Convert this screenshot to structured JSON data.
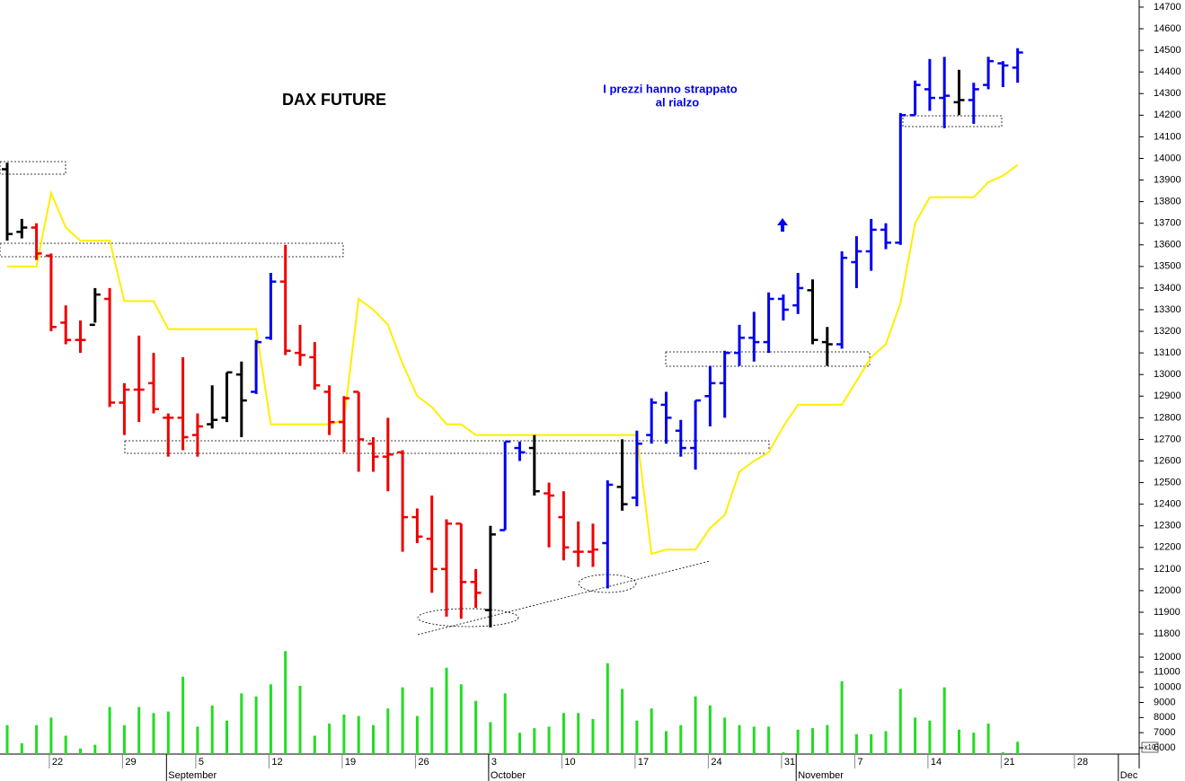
{
  "chart_data": {
    "type": "ohlc",
    "title": "DAX FUTURE",
    "annotation": [
      "I prezzi hanno strappato",
      "al rialzo"
    ],
    "volume_multiplier_label": "x10",
    "categories": [
      null,
      null,
      null,
      "22",
      null,
      null,
      null,
      null,
      "29",
      null,
      null,
      null,
      null,
      "5",
      null,
      null,
      null,
      null,
      "12",
      null,
      null,
      null,
      null,
      "19",
      null,
      null,
      null,
      null,
      "26",
      null,
      null,
      null,
      null,
      "3",
      null,
      null,
      null,
      null,
      "10",
      null,
      null,
      null,
      null,
      "17",
      null,
      null,
      null,
      null,
      "24",
      null,
      null,
      null,
      null,
      "31",
      null,
      null,
      null,
      null,
      "7",
      null,
      null,
      null,
      null,
      "14",
      null,
      null,
      null,
      null,
      "21",
      null,
      null,
      null,
      null,
      "28",
      null,
      null,
      null
    ],
    "month_labels": [
      null,
      null,
      null,
      null,
      null,
      null,
      null,
      null,
      null,
      null,
      null,
      "September",
      null,
      null,
      null,
      null,
      null,
      null,
      null,
      null,
      null,
      null,
      null,
      null,
      null,
      null,
      null,
      null,
      null,
      null,
      null,
      null,
      null,
      "October",
      null,
      null,
      null,
      null,
      null,
      null,
      null,
      null,
      null,
      null,
      null,
      null,
      null,
      null,
      null,
      null,
      null,
      null,
      null,
      null,
      "November",
      null,
      null,
      null,
      null,
      null,
      null,
      null,
      null,
      null,
      null,
      null,
      null,
      null,
      null,
      null,
      null,
      null,
      null,
      null,
      null,
      null,
      "Dec"
    ],
    "open": [
      13950,
      13660,
      13680,
      13550,
      13240,
      13160,
      13230,
      13350,
      12870,
      12930,
      12960,
      12800,
      12800,
      12720,
      12770,
      12800,
      13000,
      12920,
      13170,
      13430,
      13100,
      13080,
      12920,
      12780,
      12920,
      12680,
      12620,
      12640,
      12340,
      12240,
      12100,
      12310,
      12040,
      11910,
      12280,
      12660,
      12660,
      12450,
      12340,
      12180,
      12180,
      12220,
      12480,
      12430,
      12720,
      12860,
      12740,
      12660,
      12900,
      12960,
      13100,
      13170,
      13150,
      13350,
      13320,
      13390,
      13150,
      13140,
      13520,
      13570,
      13670,
      13610,
      14200,
      14320,
      14280,
      14260,
      14270,
      14340,
      14440,
      14420,
      null,
      null,
      null,
      null,
      null,
      null,
      null
    ],
    "high": [
      13980,
      13720,
      13700,
      13560,
      13320,
      13250,
      13400,
      13400,
      12960,
      13180,
      13100,
      12820,
      13080,
      12820,
      12950,
      13010,
      13060,
      13160,
      13470,
      13600,
      13230,
      13150,
      12950,
      12900,
      12920,
      12710,
      12800,
      12650,
      12380,
      12440,
      12330,
      12310,
      12100,
      12300,
      12690,
      12690,
      12720,
      12500,
      12460,
      12320,
      12310,
      12510,
      12700,
      12740,
      12890,
      12920,
      12790,
      12880,
      13040,
      13110,
      13230,
      13290,
      13380,
      13370,
      13470,
      13440,
      13220,
      13570,
      13640,
      13720,
      13700,
      14210,
      14360,
      14460,
      14470,
      14410,
      14350,
      14470,
      14450,
      14510,
      null,
      null,
      null,
      null,
      null,
      null,
      null
    ],
    "low": [
      13620,
      13630,
      13530,
      13200,
      13140,
      13100,
      13240,
      12850,
      12720,
      12780,
      12820,
      12620,
      12650,
      12620,
      12750,
      12780,
      12710,
      12910,
      13160,
      13090,
      13040,
      12930,
      12720,
      12640,
      12550,
      12550,
      12460,
      12180,
      12220,
      11990,
      11880,
      11870,
      11920,
      11830,
      12280,
      12600,
      12440,
      12200,
      12140,
      12110,
      12110,
      12010,
      12370,
      12390,
      12680,
      12680,
      12620,
      12560,
      12760,
      12800,
      13040,
      13060,
      13100,
      13250,
      13280,
      13140,
      13040,
      13120,
      13400,
      13480,
      13580,
      13600,
      14200,
      14220,
      14140,
      14200,
      14160,
      14320,
      14330,
      14350,
      null,
      null,
      null,
      null,
      null,
      null,
      null
    ],
    "close": [
      13650,
      13680,
      13560,
      13220,
      13160,
      13160,
      13370,
      12870,
      12930,
      12930,
      12840,
      12800,
      12710,
      12760,
      12790,
      13010,
      12880,
      13150,
      13430,
      13110,
      13090,
      12950,
      12780,
      12890,
      12700,
      12620,
      12630,
      12340,
      12250,
      12100,
      12310,
      12040,
      11990,
      12260,
      12690,
      12640,
      12460,
      12440,
      12200,
      12180,
      12190,
      12490,
      12400,
      12680,
      12870,
      12800,
      12660,
      12880,
      12960,
      13100,
      13170,
      13150,
      13350,
      13300,
      13400,
      13160,
      13140,
      13540,
      13570,
      13670,
      13610,
      14200,
      14340,
      14280,
      14290,
      14270,
      14320,
      14450,
      14430,
      14490,
      null,
      null,
      null,
      null,
      null,
      null,
      null
    ],
    "bar_colors": [
      "#000",
      "#000",
      "#e00",
      "#e00",
      "#e00",
      "#e00",
      "#000",
      "#e00",
      "#e00",
      "#e00",
      "#e00",
      "#e00",
      "#e00",
      "#e00",
      "#000",
      "#000",
      "#000",
      "#00e",
      "#00e",
      "#e00",
      "#e00",
      "#e00",
      "#e00",
      "#e00",
      "#e00",
      "#e00",
      "#e00",
      "#e00",
      "#e00",
      "#e00",
      "#e00",
      "#e00",
      "#e00",
      "#000",
      "#00e",
      "#00e",
      "#000",
      "#e00",
      "#e00",
      "#e00",
      "#e00",
      "#00e",
      "#000",
      "#00e",
      "#00e",
      "#00e",
      "#00e",
      "#00e",
      "#00e",
      "#00e",
      "#00e",
      "#00e",
      "#00e",
      "#00e",
      "#00e",
      "#000",
      "#000",
      "#00e",
      "#00e",
      "#00e",
      "#00e",
      "#00e",
      "#00e",
      "#00e",
      "#00e",
      "#000",
      "#00e",
      "#00e",
      "#00e",
      "#00e",
      null,
      null,
      null,
      null,
      null,
      null,
      null
    ],
    "line": {
      "color": "#ffee00",
      "values": [
        13500,
        13500,
        13500,
        13840,
        13680,
        13620,
        13620,
        13620,
        13340,
        13340,
        13340,
        13210,
        13210,
        13210,
        13210,
        13210,
        13210,
        13210,
        12770,
        12770,
        12770,
        12770,
        12770,
        12790,
        13350,
        13300,
        13230,
        13050,
        12900,
        12850,
        12770,
        12770,
        12720,
        12720,
        12720,
        12720,
        12720,
        12720,
        12720,
        12720,
        12720,
        12720,
        12720,
        12720,
        12170,
        12190,
        12190,
        12190,
        12290,
        12350,
        12550,
        12600,
        12640,
        12760,
        12860,
        12860,
        12860,
        12860,
        12970,
        13080,
        13140,
        13330,
        13700,
        13820,
        13820,
        13820,
        13820,
        13890,
        13920,
        13970,
        null,
        null,
        null,
        null,
        null,
        null,
        null
      ]
    },
    "ylim": [
      11763,
      14733
    ],
    "yticks": [
      11800,
      11900,
      12000,
      12100,
      12200,
      12300,
      12400,
      12500,
      12600,
      12700,
      12800,
      12900,
      13000,
      13100,
      13200,
      13300,
      13400,
      13500,
      13600,
      13700,
      13800,
      13900,
      14000,
      14100,
      14200,
      14300,
      14400,
      14500,
      14600,
      14700
    ],
    "volume": {
      "color": "#22dd22",
      "values": [
        7500,
        6300,
        7500,
        8000,
        6800,
        5950,
        6200,
        8700,
        7500,
        8700,
        8300,
        8400,
        10700,
        7400,
        8800,
        7800,
        9600,
        9400,
        10200,
        12400,
        10100,
        6800,
        7600,
        8200,
        8100,
        7500,
        8600,
        10000,
        8100,
        10000,
        11300,
        10200,
        9100,
        7700,
        9600,
        7000,
        7300,
        7400,
        8300,
        8300,
        7900,
        11600,
        9900,
        7800,
        8600,
        7100,
        7500,
        9400,
        8800,
        8000,
        7500,
        7400,
        7400,
        5700,
        7200,
        7300,
        7500,
        10400,
        6900,
        6900,
        7100,
        9900,
        8000,
        7800,
        10000,
        7200,
        7000,
        7600,
        5700,
        6400,
        null,
        null,
        null,
        null,
        null,
        null,
        null
      ],
      "ylim": [
        5584,
        12713
      ],
      "yticks": [
        6000,
        7000,
        8000,
        9000,
        10000,
        11000,
        12000
      ]
    }
  }
}
